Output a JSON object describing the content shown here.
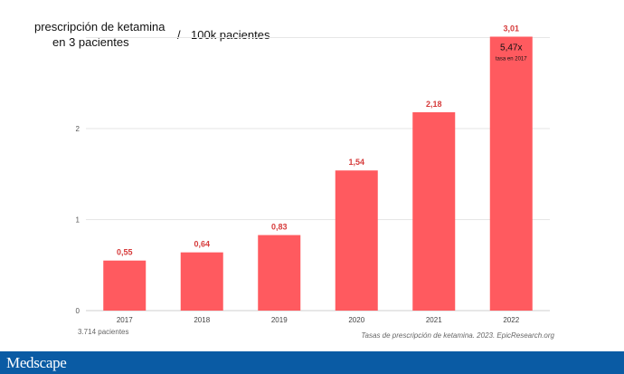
{
  "title_line1": "prescripción de ketamina",
  "title_line2": "en 3 pacientes",
  "title_separator": "/",
  "title_unit": "100k pacientes",
  "footnote_left": "3.714 pacientes",
  "source_note": "Tasas de prescripción de ketamina. 2023. EpicResearch.org",
  "brand": "Medscape",
  "colors": {
    "bar": "#ff5a5f",
    "value_label": "#d63b3b",
    "brand_bar": "#0a5ba4",
    "grid": "#e6e6e6"
  },
  "chart_data": {
    "type": "bar",
    "categories": [
      "2017",
      "2018",
      "2019",
      "2020",
      "2021",
      "2022"
    ],
    "values": [
      0.55,
      0.64,
      0.83,
      1.54,
      2.18,
      3.01
    ],
    "value_labels": [
      "0,55",
      "0,64",
      "0,83",
      "1,54",
      "2,18",
      "3,01"
    ],
    "yticks": [
      0,
      1,
      2
    ],
    "ytick_labels": [
      "0",
      "1",
      "2"
    ],
    "ylim": [
      0,
      3.0
    ],
    "grid": true,
    "annotation": {
      "category": "2022",
      "text": "5,47x",
      "subtext": "tasa en 2017"
    }
  }
}
